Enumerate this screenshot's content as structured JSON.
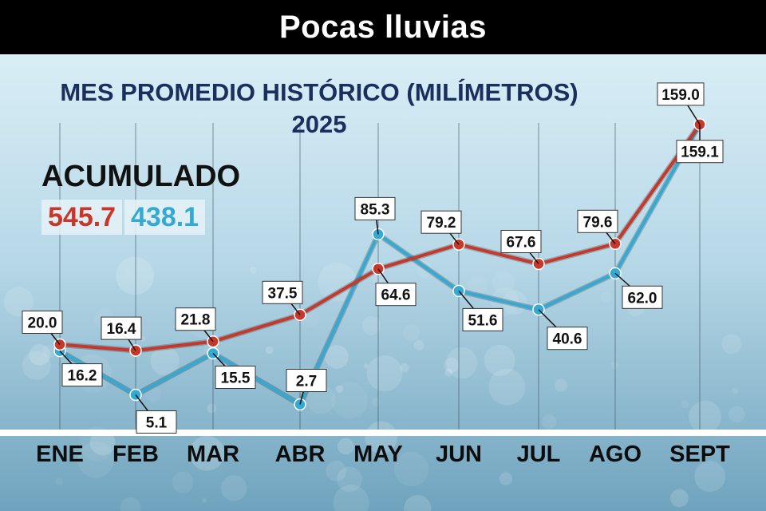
{
  "header": {
    "title": "Pocas lluvias"
  },
  "subtitle": {
    "line1": "MES PROMEDIO HISTÓRICO (MILÍMETROS)",
    "line2": "2025"
  },
  "accumulated": {
    "label": "ACUMULADO",
    "historic": "545.7",
    "current": "438.1"
  },
  "colors": {
    "historic": "#c8382a",
    "current": "#34a9d3",
    "title": "#1a2f5e"
  },
  "chart_data": {
    "type": "line",
    "categories": [
      "ENE",
      "FEB",
      "MAR",
      "ABR",
      "MAY",
      "JUN",
      "JUL",
      "AGO",
      "SEPT"
    ],
    "series": [
      {
        "name": "MES PROMEDIO HISTÓRICO",
        "color": "#c8382a",
        "values": [
          20.0,
          16.4,
          21.8,
          37.5,
          64.6,
          79.2,
          67.6,
          79.6,
          159.0
        ],
        "labels": [
          "20.0",
          "16.4",
          "21.8",
          "37.5",
          "64.6",
          "79.2",
          "67.6",
          "79.6",
          "159.0"
        ]
      },
      {
        "name": "2025",
        "color": "#34a9d3",
        "values": [
          16.2,
          5.1,
          15.5,
          2.7,
          85.3,
          51.6,
          40.6,
          62.0,
          159.1
        ],
        "labels": [
          "16.2",
          "5.1",
          "15.5",
          "2.7",
          "85.3",
          "51.6",
          "40.6",
          "62.0",
          "159.1"
        ]
      }
    ],
    "title": "MES PROMEDIO HISTÓRICO (MILÍMETROS)",
    "xlabel": "",
    "ylabel": "",
    "grid": "vertical"
  }
}
